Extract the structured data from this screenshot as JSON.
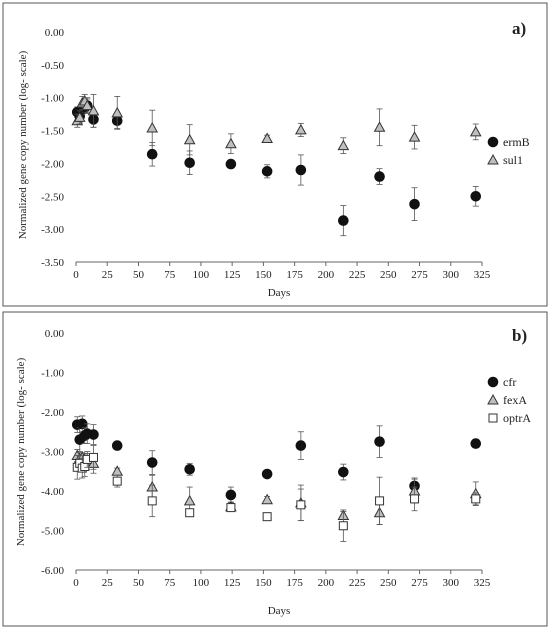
{
  "chart_data": [
    {
      "type": "scatter",
      "panel_label": "a)",
      "xlabel": "Days",
      "ylabel": "Normalized gene copy number (log- scale)",
      "xlim": [
        0,
        325
      ],
      "ylim": [
        -3.5,
        0
      ],
      "xticks": [
        0,
        25,
        50,
        75,
        100,
        125,
        150,
        175,
        200,
        225,
        250,
        275,
        300,
        325
      ],
      "yticks": [
        "0.00",
        "-0.50",
        "-1.00",
        "-1.50",
        "-2.00",
        "-2.50",
        "-3.00",
        "-3.50"
      ],
      "yticks_values": [
        0,
        -0.5,
        -1.0,
        -1.5,
        -2.0,
        -2.5,
        -3.0,
        -3.5
      ],
      "grid": false,
      "legend_position": "right",
      "series": [
        {
          "name": "ermB",
          "marker": "circle",
          "x": [
            1,
            3,
            5,
            7,
            9,
            14,
            33,
            61,
            91,
            124,
            153,
            180,
            214,
            243,
            271,
            320
          ],
          "y": [
            -1.22,
            -1.28,
            -1.18,
            -1.15,
            -1.12,
            -1.33,
            -1.35,
            -1.86,
            -1.99,
            -2.01,
            -2.12,
            -2.1,
            -2.87,
            -2.2,
            -2.62,
            -2.5
          ],
          "err": [
            0.08,
            0.1,
            0.08,
            0.08,
            0.1,
            0.12,
            0.12,
            0.18,
            0.18,
            0.04,
            0.1,
            0.23,
            0.23,
            0.12,
            0.25,
            0.15
          ]
        },
        {
          "name": "sul1",
          "marker": "triangle",
          "x": [
            1,
            3,
            5,
            7,
            9,
            14,
            33,
            61,
            91,
            124,
            153,
            180,
            214,
            243,
            271,
            320
          ],
          "y": [
            -1.35,
            -1.3,
            -1.08,
            -1.05,
            -1.12,
            -1.2,
            -1.23,
            -1.46,
            -1.64,
            -1.7,
            -1.62,
            -1.49,
            -1.73,
            -1.45,
            -1.6,
            -1.52
          ],
          "err": [
            0.1,
            0.1,
            0.1,
            0.1,
            0.12,
            0.25,
            0.25,
            0.27,
            0.23,
            0.15,
            0.05,
            0.1,
            0.12,
            0.28,
            0.18,
            0.12
          ]
        }
      ]
    },
    {
      "type": "scatter",
      "panel_label": "b)",
      "xlabel": "Days",
      "ylabel": "Normalized gene copy number (log- scale)",
      "xlim": [
        0,
        325
      ],
      "ylim": [
        -6,
        0
      ],
      "xticks": [
        0,
        25,
        50,
        75,
        100,
        125,
        150,
        175,
        200,
        225,
        250,
        275,
        300,
        325
      ],
      "yticks": [
        "0.00",
        "-1.00",
        "-2.00",
        "-3.00",
        "-4.00",
        "-5.00",
        "-6.00"
      ],
      "yticks_values": [
        0,
        -1,
        -2,
        -3,
        -4,
        -5,
        -6
      ],
      "grid": false,
      "legend_position": "right",
      "series": [
        {
          "name": "cfr",
          "marker": "circle",
          "x": [
            1,
            3,
            5,
            7,
            9,
            14,
            33,
            61,
            91,
            124,
            153,
            180,
            214,
            243,
            271,
            320
          ],
          "y": [
            -2.32,
            -2.7,
            -2.3,
            -2.6,
            -2.55,
            -2.57,
            -2.85,
            -3.28,
            -3.45,
            -4.1,
            -3.57,
            -2.85,
            -3.52,
            -2.75,
            -3.87,
            -2.8
          ],
          "err": [
            0.2,
            0.3,
            0.2,
            0.2,
            0.25,
            0.25,
            0.1,
            0.3,
            0.15,
            0.2,
            0.05,
            0.35,
            0.2,
            0.4,
            0.2,
            0.1
          ]
        },
        {
          "name": "fexA",
          "marker": "triangle",
          "x": [
            1,
            3,
            5,
            7,
            9,
            14,
            33,
            61,
            91,
            124,
            153,
            180,
            214,
            243,
            271,
            320
          ],
          "y": [
            -3.1,
            -3.18,
            -3.15,
            -3.2,
            -3.25,
            -3.3,
            -3.5,
            -3.9,
            -4.25,
            -4.4,
            -4.22,
            -4.3,
            -4.62,
            -4.55,
            -4.0,
            -4.07
          ],
          "err": [
            0.15,
            0.15,
            0.12,
            0.15,
            0.2,
            0.25,
            0.08,
            0.3,
            0.35,
            0.12,
            0.08,
            0.45,
            0.1,
            0.3,
            0.3,
            0.3
          ]
        },
        {
          "name": "optrA",
          "marker": "square",
          "x": [
            1,
            3,
            5,
            7,
            9,
            14,
            33,
            61,
            91,
            124,
            153,
            180,
            214,
            243,
            271,
            320
          ],
          "y": [
            -3.4,
            -3.3,
            -3.42,
            -3.38,
            -3.2,
            -3.15,
            -3.75,
            -4.25,
            -4.55,
            -4.42,
            -4.65,
            -4.35,
            -4.88,
            -4.25,
            -4.2,
            -4.2
          ],
          "err": [
            0.3,
            0.2,
            0.25,
            0.25,
            0.2,
            0.3,
            0.15,
            0.4,
            0.08,
            0.05,
            0.05,
            0.4,
            0.4,
            0.6,
            0.3,
            0.15
          ]
        }
      ]
    }
  ]
}
